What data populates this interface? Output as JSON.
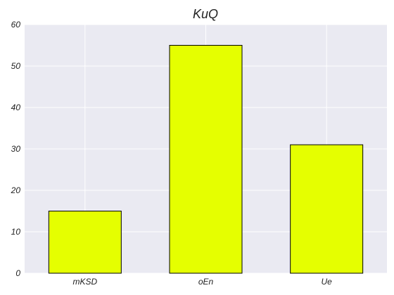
{
  "chart_data": {
    "type": "bar",
    "title": "KuQ",
    "xlabel": "",
    "ylabel": "",
    "categories": [
      "mKSD",
      "oEn",
      "Ue"
    ],
    "values": [
      15,
      55,
      31
    ],
    "ylim": [
      0,
      60
    ],
    "yticks": [
      0,
      10,
      20,
      30,
      40,
      50,
      60
    ],
    "grid": true,
    "legend": "none",
    "colors": {
      "bar": "#e5ff00",
      "bar_edge": "#000000",
      "plot_background": "#eaeaf2",
      "grid": "#ffffff",
      "text": "#222222"
    }
  }
}
